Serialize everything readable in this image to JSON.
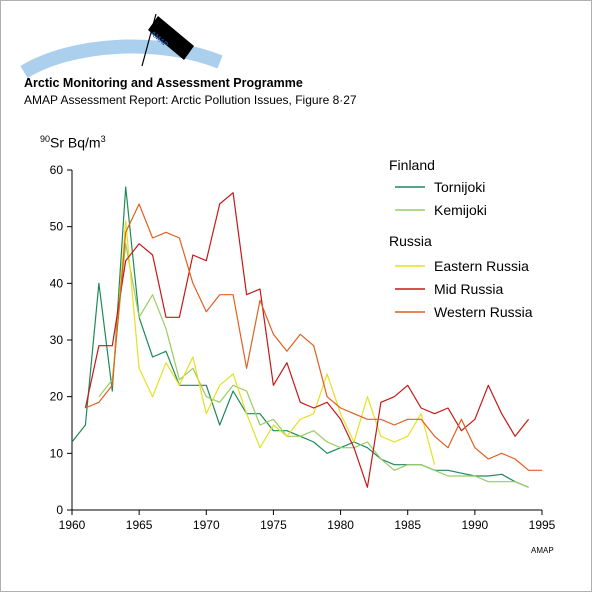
{
  "header": {
    "logo_text": "AMAP",
    "org": "Arctic Monitoring and Assessment Programme",
    "subtitle": "AMAP Assessment Report: Arctic Pollution Issues, Figure 8·27",
    "credit": "AMAP"
  },
  "colors": {
    "tornijoki": "#1e8a5a",
    "kemijoki": "#99cc66",
    "eastern": "#e6e020",
    "mid": "#c41818",
    "western": "#e06020",
    "logo_arc": "#aad0ee",
    "axis": "#000000"
  },
  "chart_data": {
    "type": "line",
    "ylabel_parts": {
      "sup1": "90",
      "text": "Sr Bq/m",
      "sup2": "3"
    },
    "xlim": [
      1960,
      1995
    ],
    "ylim": [
      0,
      60
    ],
    "xticks": [
      1960,
      1965,
      1970,
      1975,
      1980,
      1985,
      1990,
      1995
    ],
    "yticks": [
      0,
      10,
      20,
      30,
      40,
      50,
      60
    ],
    "grid": false,
    "legend_position": "top-right",
    "legend_groups": [
      {
        "title": "Finland",
        "series": [
          "Tornijoki",
          "Kemijoki"
        ]
      },
      {
        "title": "Russia",
        "series": [
          "Eastern Russia",
          "Mid Russia",
          "Western Russia"
        ]
      }
    ],
    "series": [
      {
        "name": "Tornijoki",
        "color": "#1e8a5a",
        "x": [
          1960,
          1961,
          1962,
          1963,
          1964,
          1965,
          1966,
          1967,
          1968,
          1969,
          1970,
          1971,
          1972,
          1973,
          1974,
          1975,
          1976,
          1977,
          1978,
          1979,
          1980,
          1981,
          1982,
          1983,
          1984,
          1985,
          1986,
          1987,
          1988,
          1989,
          1990,
          1991,
          1992,
          1993,
          1994
        ],
        "y": [
          12,
          15,
          40,
          21,
          57,
          34,
          27,
          28,
          22,
          22,
          22,
          15,
          21,
          17,
          17,
          14,
          14,
          13,
          12,
          10,
          11,
          12,
          11,
          9,
          8,
          8,
          8,
          7,
          7,
          6.5,
          6,
          6,
          6.3,
          5,
          4
        ]
      },
      {
        "name": "Kemijoki",
        "color": "#99cc66",
        "x": [
          1962,
          1963,
          1964,
          1965,
          1966,
          1967,
          1968,
          1969,
          1970,
          1971,
          1972,
          1973,
          1974,
          1975,
          1976,
          1977,
          1978,
          1979,
          1980,
          1981,
          1982,
          1983,
          1984,
          1985,
          1986,
          1987,
          1988,
          1989,
          1990,
          1991,
          1992,
          1993,
          1994
        ],
        "y": [
          20,
          23,
          47,
          34,
          38,
          32,
          23,
          25,
          20,
          19,
          22,
          21,
          15,
          16,
          13,
          13,
          14,
          12,
          11,
          11,
          12,
          9,
          7,
          8,
          8,
          7,
          6,
          6,
          6,
          5,
          5,
          5,
          4
        ]
      },
      {
        "name": "Eastern Russia",
        "color": "#e6e020",
        "x": [
          1963,
          1964,
          1965,
          1966,
          1967,
          1968,
          1969,
          1970,
          1971,
          1972,
          1973,
          1974,
          1975,
          1976,
          1977,
          1978,
          1979,
          1980,
          1981,
          1982,
          1983,
          1984,
          1985,
          1986,
          1987
        ],
        "y": [
          22,
          51,
          25,
          20,
          26,
          22,
          27,
          17,
          22,
          24,
          17,
          11,
          15,
          13,
          16,
          17,
          24,
          17,
          12,
          20,
          13,
          12,
          13,
          17,
          8
        ]
      },
      {
        "name": "Mid Russia",
        "color": "#c41818",
        "x": [
          1961,
          1962,
          1963,
          1964,
          1965,
          1966,
          1967,
          1968,
          1969,
          1970,
          1971,
          1972,
          1973,
          1974,
          1975,
          1976,
          1977,
          1978,
          1979,
          1980,
          1981,
          1982,
          1983,
          1984,
          1985,
          1986,
          1987,
          1988,
          1989,
          1990,
          1991,
          1992,
          1993,
          1994
        ],
        "y": [
          18,
          29,
          29,
          44,
          47,
          45,
          34,
          34,
          45,
          44,
          54,
          56,
          38,
          39,
          22,
          26,
          19,
          18,
          19,
          16,
          11,
          4,
          19,
          20,
          22,
          18,
          17,
          18,
          14,
          16,
          22,
          17,
          13,
          16
        ]
      },
      {
        "name": "Western Russia",
        "color": "#e06020",
        "x": [
          1961,
          1962,
          1963,
          1964,
          1965,
          1966,
          1967,
          1968,
          1969,
          1970,
          1971,
          1972,
          1973,
          1974,
          1975,
          1976,
          1977,
          1978,
          1979,
          1980,
          1981,
          1982,
          1983,
          1984,
          1985,
          1986,
          1987,
          1988,
          1989,
          1990,
          1991,
          1992,
          1993,
          1994,
          1995
        ],
        "y": [
          18,
          19,
          22,
          49,
          54,
          48,
          49,
          48,
          40,
          35,
          38,
          38,
          25,
          37,
          31,
          28,
          31,
          29,
          20,
          18,
          17,
          16,
          16,
          15,
          16,
          16,
          13,
          11,
          16,
          11,
          9,
          10,
          9,
          7,
          7
        ]
      }
    ]
  }
}
